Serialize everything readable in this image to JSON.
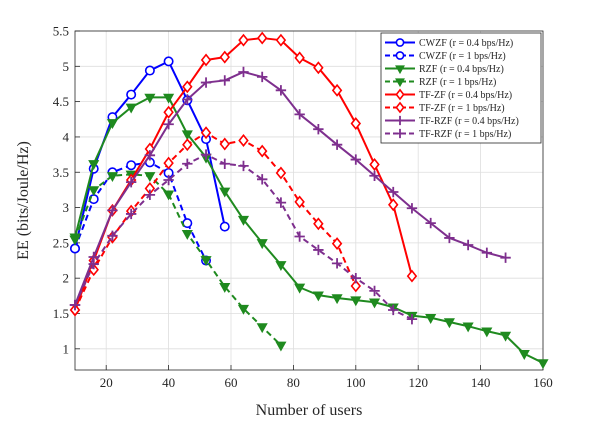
{
  "chart_data": {
    "type": "line",
    "title": "",
    "xlabel": "Number of users",
    "ylabel": "EE (bits/Joule/Hz)",
    "xlim": [
      10,
      160
    ],
    "ylim": [
      0.7,
      5.5
    ],
    "xticks": [
      20,
      40,
      60,
      80,
      100,
      120,
      140,
      160
    ],
    "yticks": [
      1,
      1.5,
      2,
      2.5,
      3,
      3.5,
      4,
      4.5,
      5,
      5.5
    ],
    "xtick_labels": [
      "20",
      "40",
      "60",
      "80",
      "100",
      "120",
      "140",
      "160"
    ],
    "ytick_labels": [
      "1",
      "1.5",
      "2",
      "2.5",
      "3",
      "3.5",
      "4",
      "4.5",
      "5",
      "5.5"
    ],
    "grid": true,
    "legend_position": "top-right",
    "series": [
      {
        "name": "CWZF (r = 0.4 bps/Hz)",
        "color": "#0000ff",
        "marker": "circle",
        "dash": false,
        "x": [
          10,
          16,
          22,
          28,
          34,
          40,
          46,
          52,
          58
        ],
        "y": [
          2.42,
          3.55,
          4.28,
          4.6,
          4.94,
          5.07,
          4.52,
          3.97,
          2.73
        ]
      },
      {
        "name": "CWZF (r = 1 bps/Hz)",
        "color": "#0000ff",
        "marker": "circle",
        "dash": true,
        "x": [
          10,
          16,
          22,
          28,
          34,
          40,
          46,
          52
        ],
        "y": [
          2.42,
          3.12,
          3.5,
          3.6,
          3.64,
          3.49,
          2.78,
          2.25
        ]
      },
      {
        "name": "RZF (r = 0.4 bps/Hz)",
        "color": "#1f8a1f",
        "marker": "triangle-down",
        "dash": false,
        "x": [
          10,
          16,
          22,
          28,
          34,
          40,
          46,
          52,
          58,
          64,
          70,
          76,
          82,
          88,
          94,
          100,
          106,
          112,
          118,
          124,
          130,
          136,
          142,
          148,
          154,
          160
        ],
        "y": [
          2.58,
          3.62,
          4.2,
          4.42,
          4.56,
          4.56,
          4.04,
          3.71,
          3.23,
          2.83,
          2.5,
          2.19,
          1.87,
          1.76,
          1.72,
          1.69,
          1.66,
          1.59,
          1.47,
          1.44,
          1.38,
          1.32,
          1.25,
          1.19,
          0.93,
          0.8
        ]
      },
      {
        "name": "RZF (r = 1 bps/Hz)",
        "color": "#1f8a1f",
        "marker": "triangle-down",
        "dash": true,
        "x": [
          10,
          16,
          22,
          28,
          34,
          40,
          46,
          52,
          58,
          64,
          70,
          76
        ],
        "y": [
          2.55,
          3.25,
          3.45,
          3.47,
          3.45,
          3.19,
          2.63,
          2.26,
          1.88,
          1.57,
          1.31,
          1.05
        ]
      },
      {
        "name": "TF-ZF (r = 0.4 bps/Hz)",
        "color": "#ff0000",
        "marker": "diamond",
        "dash": false,
        "x": [
          10,
          16,
          22,
          28,
          34,
          40,
          46,
          52,
          58,
          64,
          70,
          76,
          82,
          88,
          94,
          100,
          106,
          112,
          118
        ],
        "y": [
          1.55,
          2.25,
          2.96,
          3.39,
          3.83,
          4.35,
          4.71,
          5.09,
          5.13,
          5.37,
          5.4,
          5.37,
          5.12,
          4.98,
          4.66,
          4.19,
          3.61,
          3.04,
          2.03
        ]
      },
      {
        "name": "TF-ZF (r = 1 bps/Hz)",
        "color": "#ff0000",
        "marker": "diamond",
        "dash": true,
        "x": [
          10,
          16,
          22,
          28,
          34,
          40,
          46,
          52,
          58,
          64,
          70,
          76,
          82,
          88,
          94,
          100
        ],
        "y": [
          1.55,
          2.12,
          2.58,
          2.95,
          3.27,
          3.63,
          3.89,
          4.06,
          3.9,
          3.95,
          3.8,
          3.49,
          3.08,
          2.77,
          2.49,
          1.89
        ]
      },
      {
        "name": "TF-RZF (r = 0.4 bps/Hz)",
        "color": "#7e2f8e",
        "marker": "plus",
        "dash": false,
        "x": [
          10,
          16,
          22,
          28,
          34,
          40,
          46,
          52,
          58,
          64,
          70,
          76,
          82,
          88,
          94,
          100,
          106,
          112,
          118,
          124,
          130,
          136,
          142,
          148
        ],
        "y": [
          1.62,
          2.3,
          2.96,
          3.36,
          3.74,
          4.18,
          4.53,
          4.77,
          4.8,
          4.92,
          4.85,
          4.66,
          4.32,
          4.11,
          3.89,
          3.68,
          3.45,
          3.22,
          2.99,
          2.78,
          2.57,
          2.47,
          2.36,
          2.29
        ]
      },
      {
        "name": "TF-RZF (r = 1 bps/Hz)",
        "color": "#7e2f8e",
        "marker": "plus",
        "dash": true,
        "x": [
          10,
          16,
          22,
          28,
          34,
          40,
          46,
          52,
          58,
          64,
          70,
          76,
          82,
          88,
          94,
          100,
          106,
          112,
          118
        ],
        "y": [
          1.62,
          2.2,
          2.6,
          2.91,
          3.18,
          3.39,
          3.62,
          3.75,
          3.62,
          3.59,
          3.4,
          3.07,
          2.59,
          2.4,
          2.21,
          2.0,
          1.82,
          1.55,
          1.42
        ]
      }
    ]
  }
}
